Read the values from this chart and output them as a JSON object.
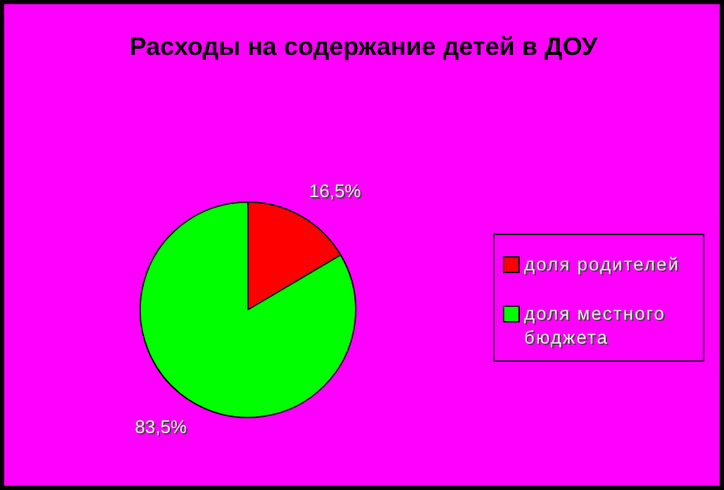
{
  "chart_data": {
    "type": "pie",
    "title": "Расходы на содержание детей в ДОУ",
    "categories": [
      "доля родителей",
      "доля местного бюджета"
    ],
    "values": [
      16.5,
      83.5
    ],
    "colors": [
      "#ff0000",
      "#00ff00"
    ],
    "value_labels": [
      "16,5%",
      "83,5%"
    ],
    "legend": "right"
  }
}
